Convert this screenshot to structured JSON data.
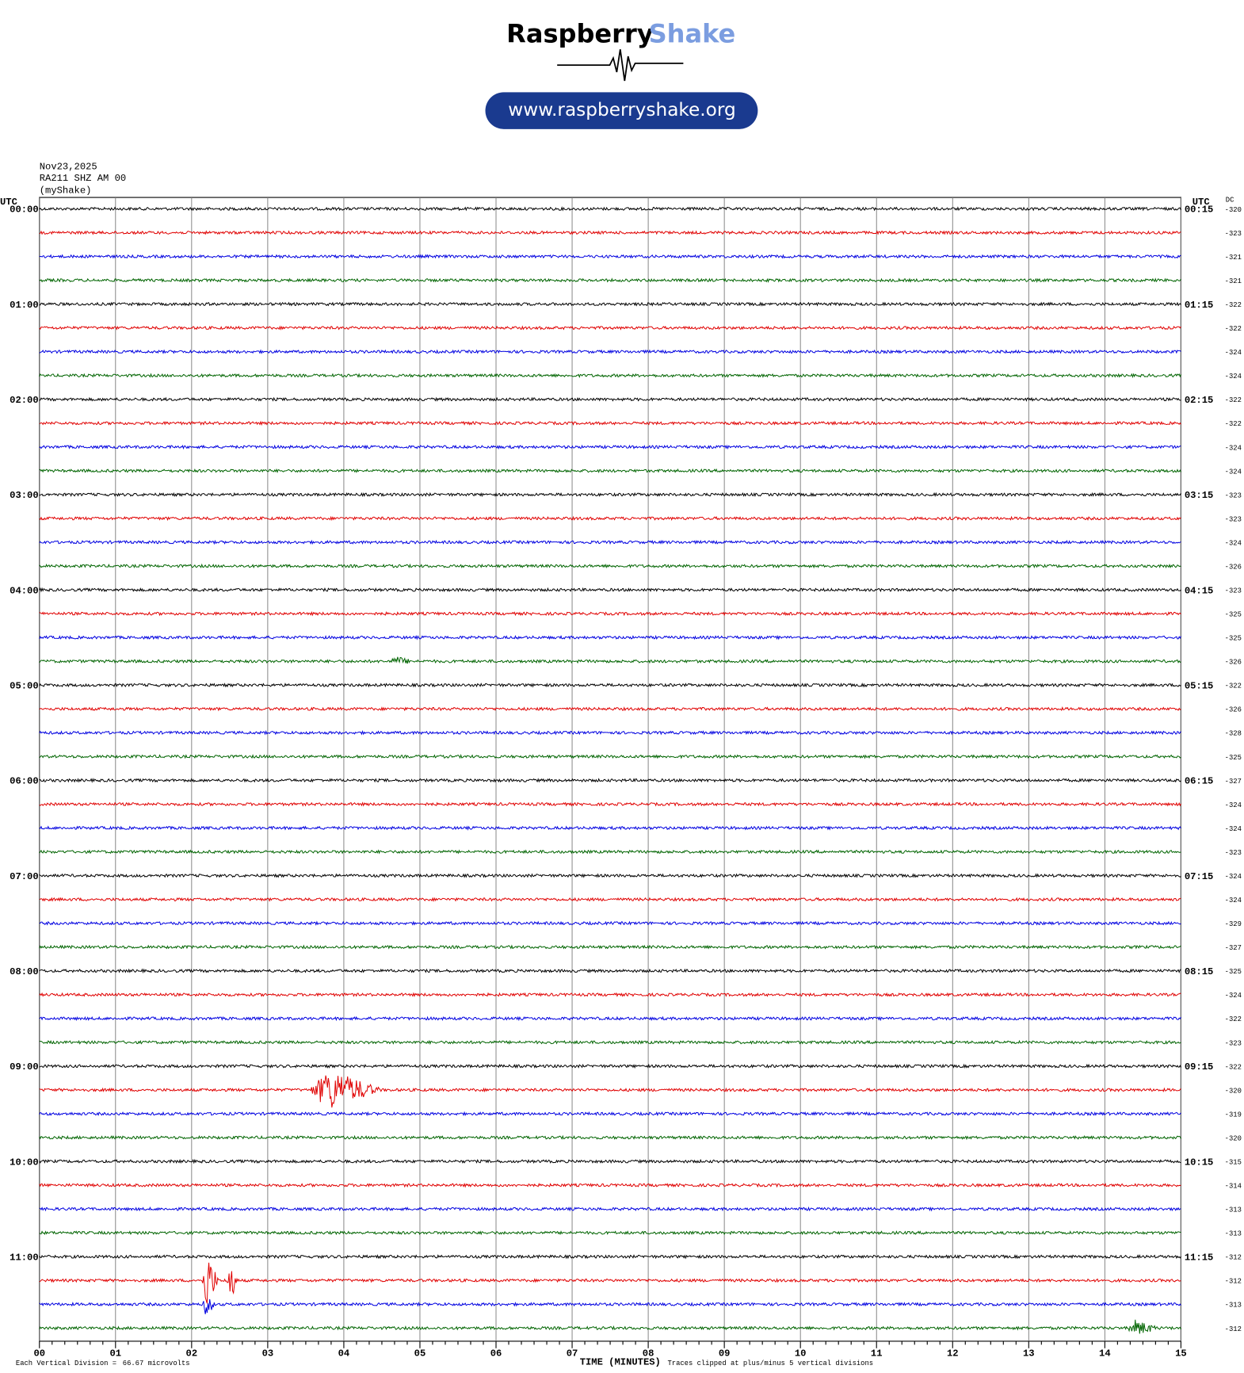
{
  "header": {
    "brand_1": "Raspberry",
    "brand_2": "Shake",
    "url": "www.raspberryshake.org"
  },
  "plot_info": {
    "date": "Nov23,2025",
    "station": "RA211 SHZ AM 00",
    "source": "(myShake)"
  },
  "left_axis": {
    "title": "UTC",
    "labels": [
      "00:00",
      "01:00",
      "02:00",
      "03:00",
      "04:00",
      "05:00",
      "06:00",
      "07:00",
      "08:00",
      "09:00",
      "10:00",
      "11:00"
    ]
  },
  "right_axis": {
    "title": "UTC",
    "labels": [
      "00:15",
      "01:15",
      "02:15",
      "03:15",
      "04:15",
      "05:15",
      "06:15",
      "07:15",
      "08:15",
      "09:15",
      "10:15",
      "11:15"
    ]
  },
  "dc": {
    "title": "DC",
    "values": [
      -320,
      -323,
      -321,
      -321,
      -322,
      -322,
      -324,
      -324,
      -322,
      -322,
      -324,
      -324,
      -323,
      -323,
      -324,
      -326,
      -323,
      -325,
      -325,
      -326,
      -322,
      -326,
      -328,
      -325,
      -327,
      -324,
      -324,
      -323,
      -324,
      -324,
      -329,
      -327,
      -325,
      -324,
      -322,
      -323,
      -322,
      -320,
      -319,
      -320,
      -315,
      -314,
      -313,
      -313,
      -312,
      -312,
      -313,
      -312
    ]
  },
  "time_axis": {
    "title": "TIME (MINUTES)",
    "ticks": [
      {
        "value": 0,
        "label": "00"
      },
      {
        "value": 1,
        "label": "01"
      },
      {
        "value": 2,
        "label": "02"
      },
      {
        "value": 3,
        "label": "03"
      },
      {
        "value": 4,
        "label": "04"
      },
      {
        "value": 5,
        "label": "05"
      },
      {
        "value": 6,
        "label": "06"
      },
      {
        "value": 7,
        "label": "07"
      },
      {
        "value": 8,
        "label": "08"
      },
      {
        "value": 9,
        "label": "09"
      },
      {
        "value": 10,
        "label": "10"
      },
      {
        "value": 11,
        "label": "11"
      },
      {
        "value": 12,
        "label": "12"
      },
      {
        "value": 13,
        "label": "13"
      },
      {
        "value": 14,
        "label": "14"
      },
      {
        "value": 15,
        "label": "15"
      }
    ]
  },
  "footer": {
    "scale_note": "Each Vertical Division =",
    "scale_value": "66.67 microvolts",
    "clip_note": "Traces clipped at plus/minus 5 vertical divisions"
  },
  "trace_colors": [
    "#000000",
    "#e00000",
    "#0000e0",
    "#006400"
  ]
}
